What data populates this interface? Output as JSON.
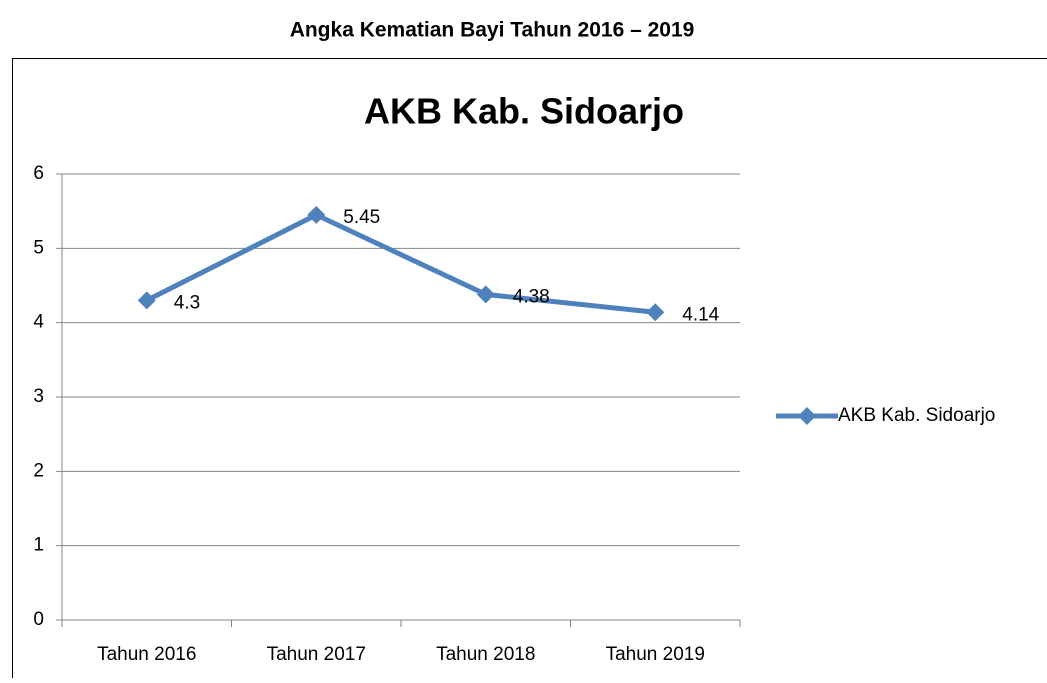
{
  "heading": "Angka Kematian Bayi Tahun 2016 – 2019",
  "chart_data": {
    "type": "line",
    "title": "AKB Kab. Sidoarjo",
    "categories": [
      "Tahun 2016",
      "Tahun 2017",
      "Tahun 2018",
      "Tahun 2019"
    ],
    "series": [
      {
        "name": "AKB Kab. Sidoarjo",
        "color": "#4f81bd",
        "values": [
          4.3,
          5.45,
          4.38,
          4.14
        ]
      }
    ],
    "ylim": [
      0,
      6
    ],
    "yticks": [
      0,
      1,
      2,
      3,
      4,
      5,
      6
    ],
    "grid": true,
    "legend": "right",
    "data_labels": true
  }
}
